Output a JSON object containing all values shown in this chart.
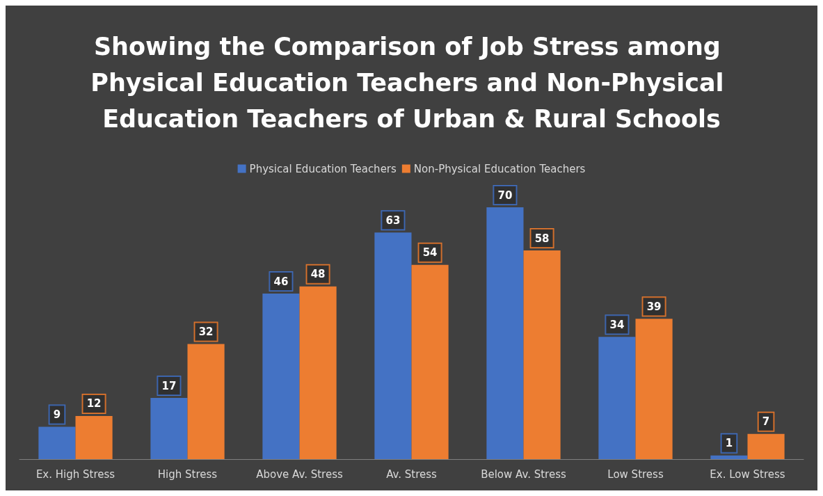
{
  "chart_data": {
    "type": "bar",
    "title": "Showing the Comparison of Job Stress among Physical Education Teachers and Non-Physical Education Teachers of Urban & Rural Schools",
    "categories": [
      "Ex. High Stress",
      "High Stress",
      "Above Av. Stress",
      "Av. Stress",
      "Below Av. Stress",
      "Low Stress",
      "Ex. Low Stress"
    ],
    "series": [
      {
        "name": "Physical Education Teachers",
        "color": "#4472c4",
        "values": [
          9,
          17,
          46,
          63,
          70,
          34,
          1
        ]
      },
      {
        "name": "Non-Physical Education Teachers",
        "color": "#ed7d31",
        "values": [
          12,
          32,
          48,
          54,
          58,
          39,
          7
        ]
      }
    ],
    "data_labels": true,
    "legend": "top"
  }
}
